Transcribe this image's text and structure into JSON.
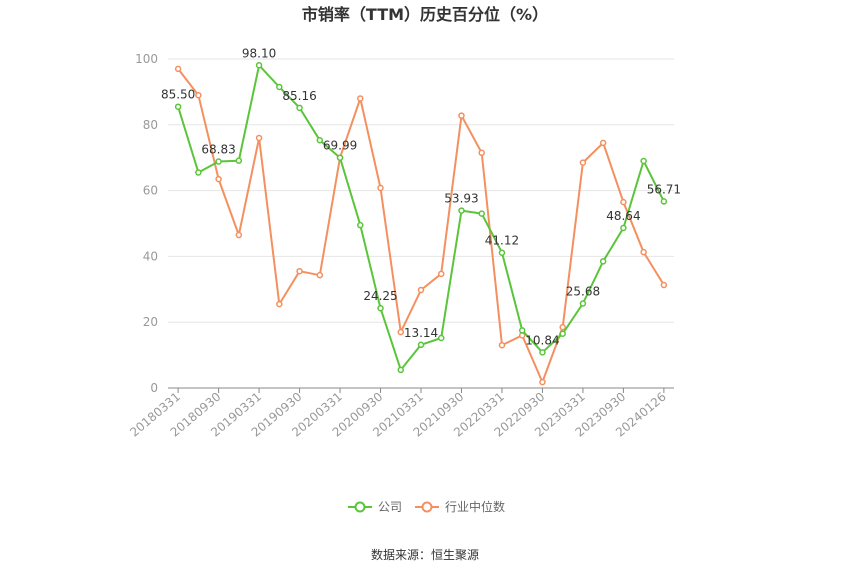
{
  "source_text": "数据来源：恒生聚源",
  "chart_data": {
    "type": "line",
    "title": "市销率（TTM）历史百分位（%）",
    "xlabel": "",
    "ylabel": "",
    "ylim": [
      0,
      100
    ],
    "yticks": [
      0,
      20,
      40,
      60,
      80,
      100
    ],
    "grid": true,
    "legend_position": "bottom",
    "x": [
      "20180331",
      "20180630",
      "20180930",
      "20181231",
      "20190331",
      "20190630",
      "20190930",
      "20191231",
      "20200331",
      "20200630",
      "20200930",
      "20201231",
      "20210331",
      "20210630",
      "20210930",
      "20211231",
      "20220331",
      "20220630",
      "20220930",
      "20221231",
      "20230331",
      "20230630",
      "20230930",
      "20231231",
      "20240126"
    ],
    "x_tick_labels": [
      "20180331",
      "20180930",
      "20190331",
      "20190930",
      "20200331",
      "20200930",
      "20210331",
      "20210930",
      "20220331",
      "20220930",
      "20230331",
      "20230930",
      "20240126"
    ],
    "series": [
      {
        "name": "公司",
        "color": "#5ac53a",
        "values": [
          85.5,
          65.5,
          68.83,
          69.1,
          98.1,
          91.5,
          85.16,
          75.3,
          69.99,
          49.5,
          24.25,
          5.5,
          13.14,
          15.2,
          53.93,
          53.0,
          41.12,
          17.5,
          10.84,
          16.5,
          25.68,
          38.5,
          48.64,
          69.0,
          56.71
        ],
        "labels": {
          "0": "85.50",
          "2": "68.83",
          "4": "98.10",
          "6": "85.16",
          "8": "69.99",
          "10": "24.25",
          "12": "13.14",
          "14": "53.93",
          "16": "41.12",
          "18": "10.84",
          "20": "25.68",
          "22": "48.64",
          "24": "56.71"
        }
      },
      {
        "name": "行业中位数",
        "color": "#f4905f",
        "values": [
          97.0,
          89.0,
          63.5,
          46.5,
          76.0,
          25.5,
          35.5,
          34.3,
          70.0,
          88.0,
          60.8,
          17.0,
          29.8,
          34.7,
          82.8,
          71.5,
          13.0,
          16.0,
          1.8,
          18.5,
          68.5,
          74.5,
          56.5,
          41.3,
          31.3
        ]
      }
    ]
  }
}
